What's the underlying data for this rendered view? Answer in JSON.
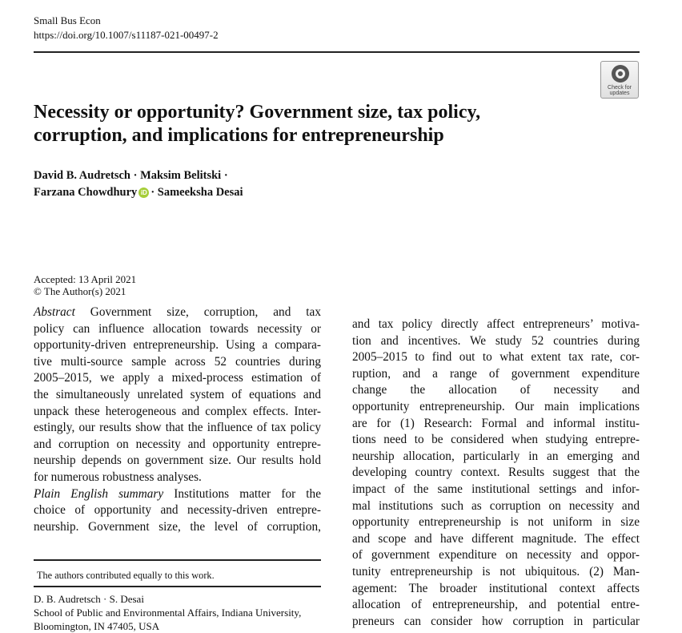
{
  "header": {
    "journal": "Small Bus Econ",
    "doi": "https://doi.org/10.1007/s11187-021-00497-2",
    "badge_line1": "Check for",
    "badge_line2": "updates"
  },
  "title": {
    "line1": "Necessity or opportunity? Government size, tax policy,",
    "line2": "corruption, and implications for entrepreneurship"
  },
  "authors": {
    "a1": "David B. Audretsch",
    "a2": "Maksim Belitski",
    "a3": "Farzana Chowdhury",
    "a4": "Sameeksha Desai",
    "sep": "·",
    "orcid_glyph": "iD"
  },
  "meta": {
    "accepted": "Accepted: 13 April 2021",
    "copyright": "© The Author(s) 2021"
  },
  "left_column": {
    "abstract_label": "Abstract",
    "abstract_lines": [
      " Government size, corruption, and tax",
      "policy can influence allocation towards necessity or",
      "opportunity-driven entrepreneurship. Using a compara-",
      "tive multi-source sample across 52 countries during",
      "2005–2015, we apply a mixed-process estimation of",
      "the simultaneously unrelated system of equations and",
      "unpack these heterogeneous and complex effects. Inter-",
      "estingly, our results show that the influence of tax policy",
      "and corruption on necessity and opportunity entrepre-",
      "neurship depends on government size. Our results hold",
      "for numerous robustness analyses."
    ],
    "summary_label": "Plain English summary",
    "summary_lines": [
      " Institutions matter for the",
      "choice of opportunity and necessity-driven entrepre-",
      "neurship. Government size, the level of corruption,"
    ]
  },
  "right_column": {
    "lines": [
      "and tax policy directly affect entrepreneurs’ motiva-",
      "tion and incentives. We study 52 countries during",
      "2005–2015 to find out to what extent tax rate, cor-",
      "ruption, and a range of government expenditure",
      "change the allocation of necessity and",
      "opportunity entrepreneurship. Our main implications",
      "are for (1) Research: Formal and informal institu-",
      "tions need to be considered when studying entrepre-",
      "neurship allocation, particularly in an emerging and",
      "developing country context. Results suggest that the",
      "impact of the same institutional settings and infor-",
      "mal institutions such as corruption on necessity and",
      "opportunity entrepreneurship is not uniform in size",
      "and scope and have different magnitude. The effect",
      "of government expenditure on necessity and oppor-",
      "tunity entrepreneurship is not ubiquitous. (2) Man-",
      "agement: The broader institutional context affects",
      "allocation of entrepreneurship, and potential entre-",
      "preneurs can consider how corruption in particular"
    ]
  },
  "footnote": "The authors contributed equally to this work.",
  "affiliation": {
    "names": "D. B. Audretsch · S. Desai",
    "line1": "School of Public and Environmental Affairs, Indiana University,",
    "line2": "Bloomington, IN 47405, USA"
  }
}
